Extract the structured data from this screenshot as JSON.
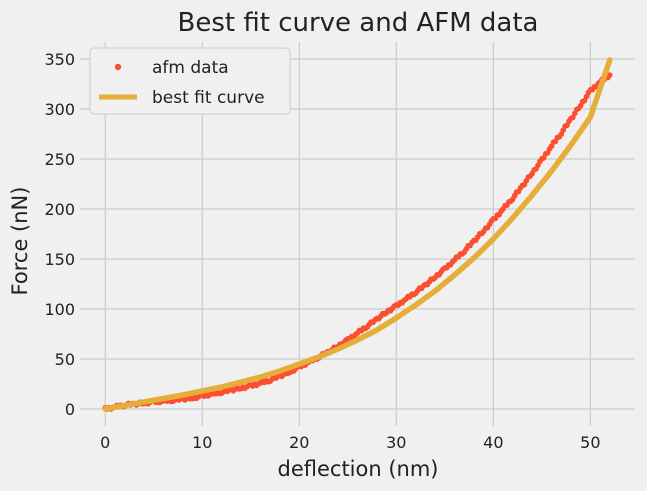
{
  "chart_data": {
    "type": "line",
    "title": "Best fit curve and AFM data",
    "xlabel": "deflection (nm)",
    "ylabel": "Force (nN)",
    "xlim": [
      -2.6,
      54.6
    ],
    "ylim": [
      -17,
      367
    ],
    "xticks": [
      0,
      10,
      20,
      30,
      40,
      50
    ],
    "yticks": [
      0,
      50,
      100,
      150,
      200,
      250,
      300,
      350
    ],
    "grid": true,
    "legend_position": "top-left",
    "series": [
      {
        "name": "afm data",
        "style": "markers",
        "color": "#fc4f30",
        "x": [
          0,
          1,
          2,
          3,
          4,
          5,
          6,
          7,
          8,
          9,
          10,
          11,
          12,
          13,
          14,
          15,
          16,
          17,
          18,
          19,
          20,
          21,
          22,
          23,
          24,
          25,
          26,
          27,
          28,
          29,
          30,
          31,
          32,
          33,
          34,
          35,
          36,
          37,
          38,
          39,
          40,
          41,
          42,
          43,
          44,
          45,
          46,
          47,
          48,
          49,
          50,
          51,
          52
        ],
        "y": [
          0,
          2,
          4,
          5,
          6,
          7,
          8,
          9,
          10,
          11,
          13,
          15,
          17,
          19,
          21,
          23,
          26,
          29,
          33,
          37,
          42,
          47,
          52,
          57,
          63,
          69,
          76,
          83,
          90,
          97,
          103,
          110,
          117,
          124,
          132,
          140,
          149,
          158,
          168,
          178,
          189,
          200,
          211,
          223,
          236,
          249,
          263,
          276,
          290,
          304,
          318,
          327,
          334
        ]
      },
      {
        "name": "best fit curve",
        "style": "line",
        "color": "#e5ae38",
        "x": [
          0,
          2,
          4,
          6,
          8,
          10,
          12,
          14,
          16,
          18,
          20,
          22,
          24,
          26,
          28,
          30,
          32,
          34,
          36,
          38,
          40,
          42,
          44,
          46,
          48,
          50,
          52
        ],
        "y": [
          0,
          3.5,
          7,
          10.5,
          14,
          18,
          22,
          27,
          32,
          38,
          45,
          52,
          60,
          69,
          79,
          91,
          104,
          118,
          134,
          151,
          170,
          191,
          214,
          238,
          264,
          292,
          349
        ]
      }
    ]
  }
}
